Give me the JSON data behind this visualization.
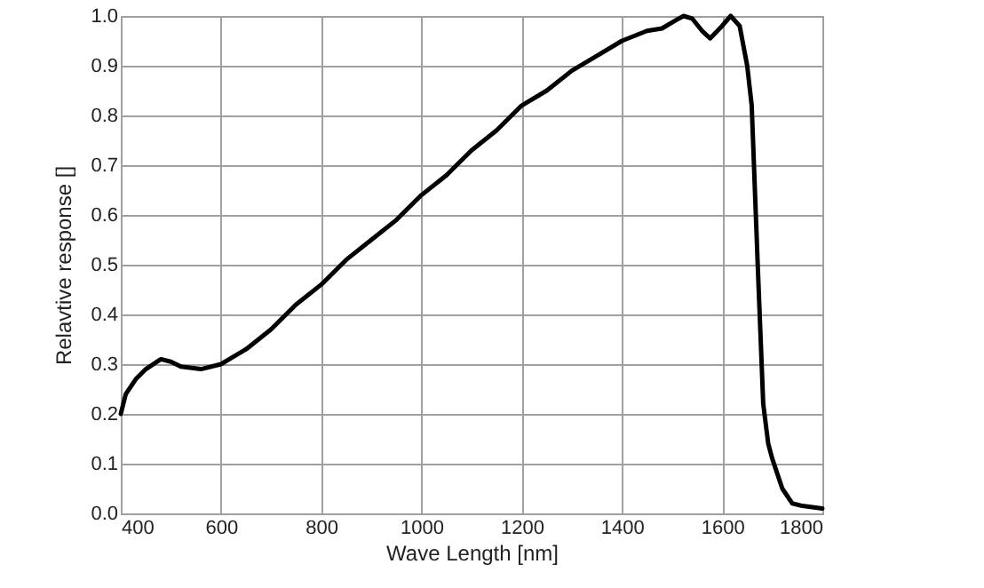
{
  "chart_data": {
    "type": "line",
    "xlabel": "Wave Length [nm]",
    "ylabel": "Relavtive response []",
    "x": [
      400,
      410,
      430,
      450,
      480,
      500,
      520,
      560,
      600,
      650,
      700,
      750,
      800,
      850,
      900,
      950,
      1000,
      1050,
      1100,
      1150,
      1200,
      1250,
      1300,
      1350,
      1400,
      1450,
      1480,
      1505,
      1523,
      1540,
      1560,
      1576,
      1600,
      1617,
      1635,
      1650,
      1659,
      1671,
      1682,
      1692,
      1700,
      1720,
      1740,
      1760,
      1800
    ],
    "series": [
      {
        "color": "#000000",
        "values": [
          0.2,
          0.24,
          0.27,
          0.29,
          0.31,
          0.305,
          0.295,
          0.29,
          0.3,
          0.33,
          0.37,
          0.42,
          0.46,
          0.51,
          0.55,
          0.59,
          0.64,
          0.68,
          0.73,
          0.77,
          0.82,
          0.85,
          0.89,
          0.92,
          0.95,
          0.97,
          0.975,
          0.99,
          1.0,
          0.995,
          0.97,
          0.955,
          0.98,
          1.0,
          0.98,
          0.9,
          0.82,
          0.5,
          0.22,
          0.14,
          0.11,
          0.05,
          0.02,
          0.015,
          0.01
        ]
      }
    ],
    "xlim": [
      400,
      1800
    ],
    "xticks": [
      400,
      600,
      800,
      1000,
      1200,
      1400,
      1600,
      1800
    ],
    "ylim": [
      0,
      1
    ],
    "yticks": [
      {
        "value": 0,
        "label": "0.0"
      },
      0.1,
      0.2,
      0.3,
      0.4,
      0.5,
      0.6,
      0.7,
      0.8,
      0.9,
      {
        "value": 1,
        "label": "1.0"
      }
    ],
    "grid": true,
    "marker": "none",
    "line_style": "solid"
  }
}
